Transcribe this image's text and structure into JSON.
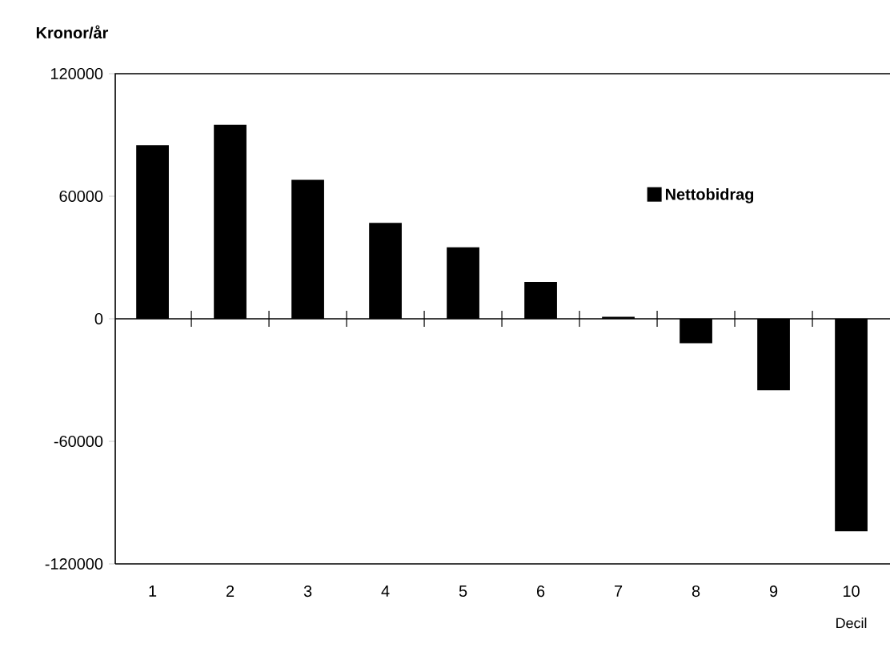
{
  "chart_data": {
    "type": "bar",
    "ylabel": "Kronor/år",
    "xlabel": "Decil",
    "categories": [
      "1",
      "2",
      "3",
      "4",
      "5",
      "6",
      "7",
      "8",
      "9",
      "10"
    ],
    "series": [
      {
        "name": "Nettobidrag",
        "color": "#000000",
        "values": [
          85000,
          95000,
          68000,
          47000,
          35000,
          18000,
          1000,
          -12000,
          -35000,
          -104000
        ]
      }
    ],
    "ylim": [
      -120000,
      120000
    ],
    "yticks": [
      -120000,
      -60000,
      0,
      60000,
      120000
    ],
    "legend": "top right"
  }
}
